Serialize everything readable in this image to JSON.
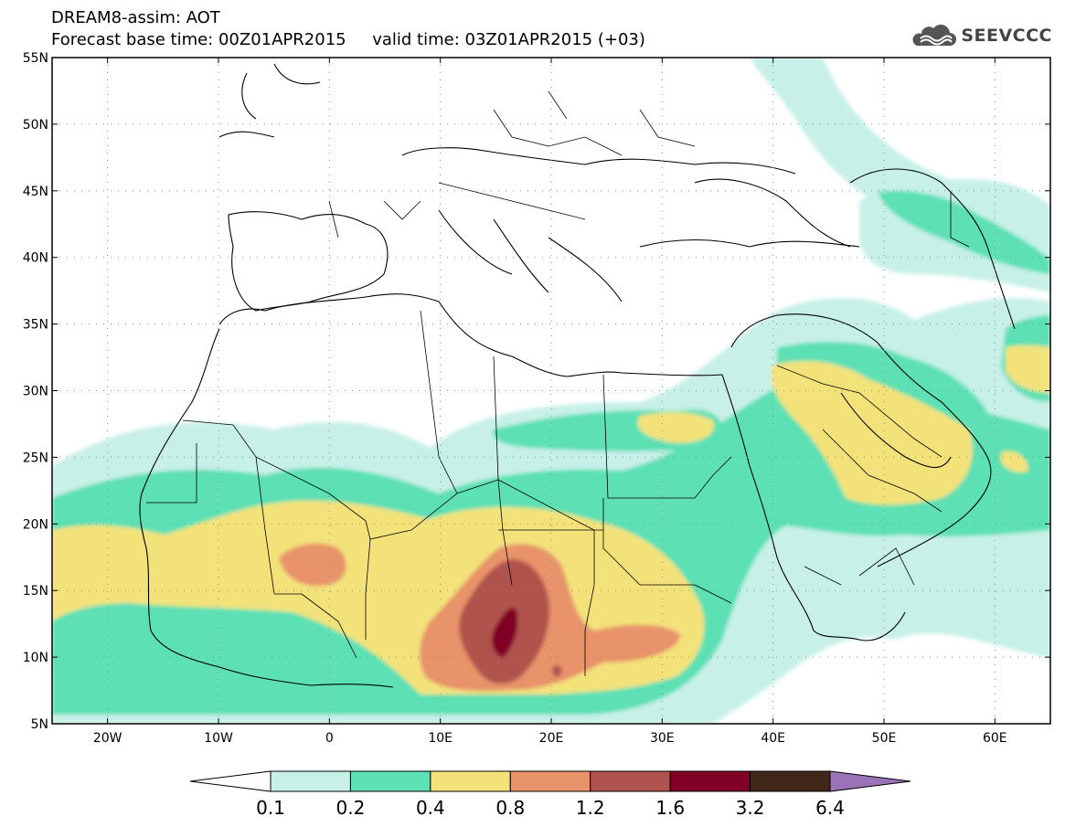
{
  "header": {
    "title": "DREAM8-assim: AOT",
    "base_time_label": "Forecast base time: 00Z01APR2015",
    "valid_time_label": "valid time: 03Z01APR2015 (+03)"
  },
  "logo": {
    "text": "SEEVCCC",
    "icon": "cloud-icon"
  },
  "map": {
    "lon_range": [
      -25,
      65
    ],
    "lat_range": [
      5,
      55
    ],
    "lon_ticks": [
      "20W",
      "10W",
      "0",
      "10E",
      "20E",
      "30E",
      "40E",
      "50E",
      "60E"
    ],
    "lat_ticks": [
      "5N",
      "10N",
      "15N",
      "20N",
      "25N",
      "30N",
      "35N",
      "40N",
      "45N",
      "50N",
      "55N"
    ],
    "grid": "dotted"
  },
  "legend": {
    "labels": [
      "0.1",
      "0.2",
      "0.4",
      "0.8",
      "1.2",
      "1.6",
      "3.2",
      "6.4"
    ],
    "colors": [
      "#c7f0e8",
      "#5ce0b4",
      "#f3e27a",
      "#e8936a",
      "#b0524e",
      "#800026",
      "#40271a",
      "#9b74b8"
    ],
    "below_color": "#ffffff"
  }
}
